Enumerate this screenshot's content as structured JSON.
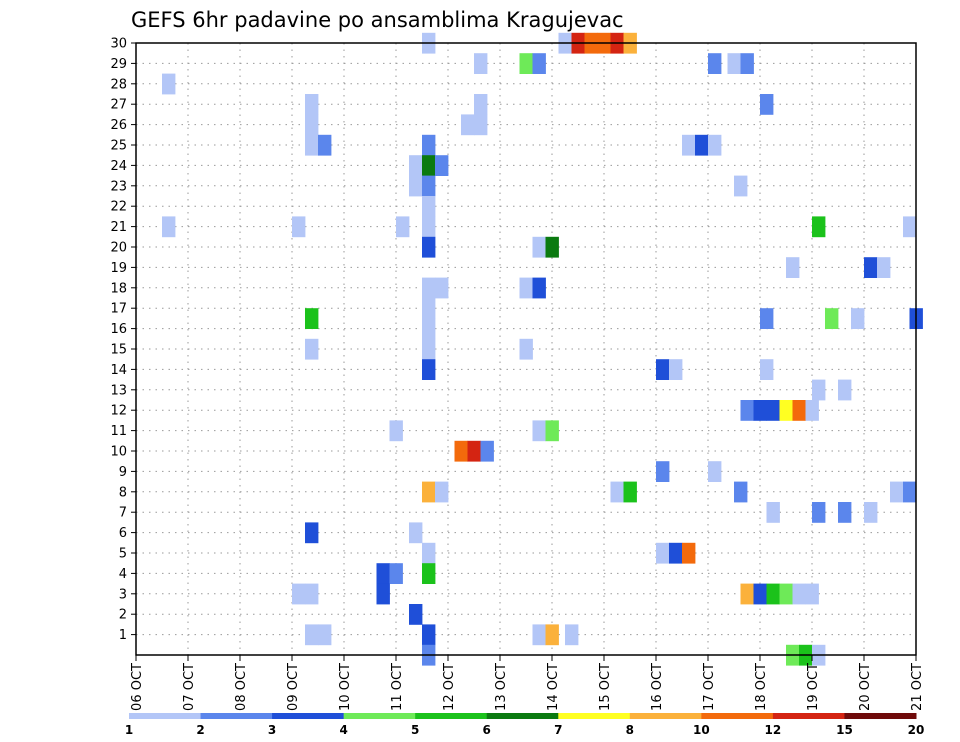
{
  "chart_data": {
    "type": "heatmap",
    "title": "GEFS 6hr padavine po ansamblima Kragujevac",
    "xlabel": "",
    "ylabel": "",
    "x_unit": "6-hour steps from 06 OCT 00z",
    "xlim": [
      0,
      60
    ],
    "ylim": [
      0,
      30
    ],
    "x_ticks": [
      {
        "pos": 0,
        "label": "06 OCT"
      },
      {
        "pos": 4,
        "label": "07 OCT"
      },
      {
        "pos": 8,
        "label": "08 OCT"
      },
      {
        "pos": 12,
        "label": "09 OCT"
      },
      {
        "pos": 16,
        "label": "10 OCT"
      },
      {
        "pos": 20,
        "label": "11 OCT"
      },
      {
        "pos": 24,
        "label": "12 OCT"
      },
      {
        "pos": 28,
        "label": "13 OCT"
      },
      {
        "pos": 32,
        "label": "14 OCT"
      },
      {
        "pos": 36,
        "label": "15 OCT"
      },
      {
        "pos": 40,
        "label": "16 OCT"
      },
      {
        "pos": 44,
        "label": "17 OCT"
      },
      {
        "pos": 48,
        "label": "18 OCT"
      },
      {
        "pos": 52,
        "label": "19 OCT"
      },
      {
        "pos": 56,
        "label": "20 OCT"
      },
      {
        "pos": 60,
        "label": "21 OCT"
      }
    ],
    "y_ticks": [
      1,
      2,
      3,
      4,
      5,
      6,
      7,
      8,
      9,
      10,
      11,
      12,
      13,
      14,
      15,
      16,
      17,
      18,
      19,
      20,
      21,
      22,
      23,
      24,
      25,
      26,
      27,
      28,
      29,
      30
    ],
    "grid": true,
    "legend": {
      "placement": "bottom",
      "colors": [
        "#b3c6f7",
        "#5b86ec",
        "#1f4fd8",
        "#6eea58",
        "#1bc21b",
        "#0b7a10",
        "#ffff22",
        "#fbb13b",
        "#f36a0c",
        "#d42412",
        "#6f0a0a"
      ],
      "labels": [
        "1",
        "2",
        "3",
        "4",
        "5",
        "6",
        "7",
        "8",
        "10",
        "12",
        "15",
        "20"
      ]
    },
    "cells": [
      [
        22.5,
        30,
        1
      ],
      [
        33,
        30,
        1
      ],
      [
        34,
        30,
        10
      ],
      [
        35,
        30,
        9
      ],
      [
        36,
        30,
        9
      ],
      [
        37,
        30,
        10
      ],
      [
        38,
        30,
        8
      ],
      [
        26.5,
        29,
        1
      ],
      [
        30,
        29,
        4
      ],
      [
        31,
        29,
        2
      ],
      [
        44.5,
        29,
        2
      ],
      [
        46,
        29,
        1
      ],
      [
        47,
        29,
        2
      ],
      [
        2.5,
        28,
        1
      ],
      [
        13.5,
        27,
        1
      ],
      [
        26.5,
        27,
        1
      ],
      [
        48.5,
        27,
        2
      ],
      [
        13.5,
        26,
        1
      ],
      [
        25.5,
        26,
        1
      ],
      [
        26.5,
        26,
        1
      ],
      [
        13.5,
        25,
        1
      ],
      [
        14.5,
        25,
        2
      ],
      [
        22.5,
        25,
        2
      ],
      [
        42.5,
        25,
        1
      ],
      [
        43.5,
        25,
        3
      ],
      [
        44.5,
        25,
        1
      ],
      [
        21.5,
        24,
        1
      ],
      [
        22.5,
        24,
        6
      ],
      [
        23.5,
        24,
        2
      ],
      [
        21.5,
        23,
        1
      ],
      [
        22.5,
        23,
        2
      ],
      [
        46.5,
        23,
        1
      ],
      [
        22.5,
        22,
        1
      ],
      [
        2.5,
        21,
        1
      ],
      [
        12.5,
        21,
        1
      ],
      [
        20.5,
        21,
        1
      ],
      [
        22.5,
        21,
        1
      ],
      [
        52.5,
        21,
        5
      ],
      [
        59.5,
        21,
        1
      ],
      [
        22.5,
        20,
        3
      ],
      [
        31,
        20,
        1
      ],
      [
        32,
        20,
        6
      ],
      [
        50.5,
        19,
        1
      ],
      [
        56.5,
        19,
        3
      ],
      [
        57.5,
        19,
        1
      ],
      [
        22.5,
        18,
        1
      ],
      [
        23.5,
        18,
        1
      ],
      [
        30,
        18,
        1
      ],
      [
        31,
        18,
        3
      ],
      [
        22.5,
        17,
        1
      ],
      [
        13.5,
        16.5,
        5
      ],
      [
        48.5,
        16.5,
        2
      ],
      [
        53.5,
        16.5,
        4
      ],
      [
        55.5,
        16.5,
        1
      ],
      [
        60,
        16.5,
        3
      ],
      [
        22.5,
        16,
        1
      ],
      [
        13.5,
        15,
        1
      ],
      [
        22.5,
        15,
        1
      ],
      [
        30,
        15,
        1
      ],
      [
        22.5,
        14,
        3
      ],
      [
        40.5,
        14,
        3
      ],
      [
        41.5,
        14,
        1
      ],
      [
        48.5,
        14,
        1
      ],
      [
        52.5,
        13,
        1
      ],
      [
        54.5,
        13,
        1
      ],
      [
        47,
        12,
        2
      ],
      [
        48,
        12,
        3
      ],
      [
        49,
        12,
        3
      ],
      [
        50,
        12,
        7
      ],
      [
        51,
        12,
        9
      ],
      [
        52,
        12,
        1
      ],
      [
        20,
        11,
        1
      ],
      [
        31,
        11,
        1
      ],
      [
        32,
        11,
        4
      ],
      [
        25,
        10,
        9
      ],
      [
        26,
        10,
        10
      ],
      [
        27,
        10,
        2
      ],
      [
        40.5,
        9,
        2
      ],
      [
        44.5,
        9,
        1
      ],
      [
        22.5,
        8,
        8
      ],
      [
        23.5,
        8,
        1
      ],
      [
        37,
        8,
        1
      ],
      [
        38,
        8,
        5
      ],
      [
        46.5,
        8,
        2
      ],
      [
        58.5,
        8,
        1
      ],
      [
        59.5,
        8,
        2
      ],
      [
        49,
        7,
        1
      ],
      [
        52.5,
        7,
        2
      ],
      [
        54.5,
        7,
        2
      ],
      [
        56.5,
        7,
        1
      ],
      [
        13.5,
        6,
        3
      ],
      [
        21.5,
        6,
        1
      ],
      [
        22.5,
        5,
        1
      ],
      [
        40.5,
        5,
        1
      ],
      [
        41.5,
        5,
        3
      ],
      [
        42.5,
        5,
        9
      ],
      [
        19,
        4,
        3
      ],
      [
        20,
        4,
        2
      ],
      [
        22.5,
        4,
        5
      ],
      [
        12.5,
        3,
        1
      ],
      [
        13.5,
        3,
        1
      ],
      [
        19,
        3,
        3
      ],
      [
        47,
        3,
        8
      ],
      [
        48,
        3,
        3
      ],
      [
        49,
        3,
        5
      ],
      [
        50,
        3,
        4
      ],
      [
        51,
        3,
        1
      ],
      [
        52,
        3,
        1
      ],
      [
        21.5,
        2,
        3
      ],
      [
        13.5,
        1,
        1
      ],
      [
        14.5,
        1,
        1
      ],
      [
        22.5,
        1,
        3
      ],
      [
        31,
        1,
        1
      ],
      [
        32,
        1,
        8
      ],
      [
        33.5,
        1,
        1
      ],
      [
        22.5,
        0,
        2
      ],
      [
        50.5,
        0,
        4
      ],
      [
        51.5,
        0,
        5
      ],
      [
        52.5,
        0,
        1
      ]
    ]
  }
}
